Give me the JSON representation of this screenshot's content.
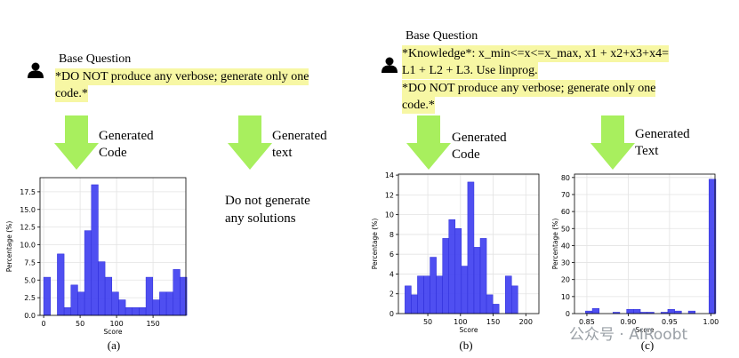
{
  "left_panel": {
    "question_title": "Base Question",
    "question_lines": [
      "*DO NOT produce any verbose; generate only one",
      "code.*"
    ],
    "code_arrow_label": [
      "Generated",
      "Code"
    ],
    "text_arrow_label": [
      "Generated",
      "text"
    ],
    "text_output": [
      "Do not generate",
      "any solutions"
    ]
  },
  "right_panel": {
    "question_title": "Base Question",
    "question_lines": [
      "*Knowledge*: x_min<=x<=x_max, x1 + x2+x3+x4=",
      "L1 + L2 + L3. Use linprog.",
      "*DO NOT produce any verbose; generate only one",
      "code.*"
    ],
    "code_arrow_label": [
      "Generated",
      "Code"
    ],
    "text_arrow_label": [
      "Generated",
      "Text"
    ]
  },
  "colors": {
    "bar": "#4646f0",
    "highlight": "#f7f7a4",
    "arrow": "#a8ef5e"
  },
  "captions": {
    "a": "(a)",
    "b": "(b)",
    "c": "(c)"
  },
  "watermark": "公众号 · AIRoobt",
  "chart_data": [
    {
      "type": "bar",
      "title": "",
      "xlabel": "Score",
      "ylabel": "Percentage (%)",
      "xlim": [
        -5,
        195
      ],
      "ylim": [
        0,
        19.5
      ],
      "xticks": [
        0,
        50,
        100,
        150
      ],
      "yticks": [
        0.0,
        2.5,
        5.0,
        7.5,
        10.0,
        12.5,
        15.0,
        17.5
      ],
      "ytick_labels": [
        "0.0",
        "2.5",
        "5.0",
        "7.5",
        "10.0",
        "12.5",
        "15.0",
        "17.5"
      ],
      "bin_start": 0,
      "bin_width": 9.35,
      "values": [
        5.4,
        0,
        8.7,
        1.1,
        4.3,
        3.3,
        12.0,
        18.5,
        7.6,
        5.4,
        3.3,
        2.2,
        1.1,
        1.1,
        1.1,
        5.4,
        2.2,
        3.3,
        3.3,
        6.5,
        5.4
      ]
    },
    {
      "type": "bar",
      "title": "",
      "xlabel": "Score",
      "ylabel": "Percentage (%)",
      "xlim": [
        5,
        220
      ],
      "ylim": [
        0,
        14.1
      ],
      "xticks": [
        50,
        100,
        150,
        200
      ],
      "yticks": [
        0,
        2,
        4,
        6,
        8,
        10,
        12,
        14
      ],
      "ytick_labels": [
        "0",
        "2",
        "4",
        "6",
        "8",
        "10",
        "12",
        "14"
      ],
      "bin_start": 15,
      "bin_width": 9.6,
      "values": [
        2.8,
        1.9,
        3.8,
        3.8,
        5.7,
        3.8,
        7.6,
        9.5,
        8.6,
        4.8,
        13.3,
        6.7,
        7.6,
        1.9,
        0.95,
        0,
        3.8,
        2.8
      ]
    },
    {
      "type": "bar",
      "title": "",
      "xlabel": "Score",
      "ylabel": "Percentage (%)",
      "xlim": [
        0.835,
        1.005
      ],
      "ylim": [
        0,
        82
      ],
      "xticks": [
        0.85,
        0.9,
        0.95,
        1.0
      ],
      "xtick_labels": [
        "0.85",
        "0.90",
        "0.95",
        "1.00"
      ],
      "yticks": [
        0,
        10,
        20,
        30,
        40,
        50,
        60,
        70,
        80
      ],
      "ytick_labels": [
        "0",
        "10",
        "20",
        "30",
        "40",
        "50",
        "60",
        "70",
        "80"
      ],
      "bin_start": 0.84,
      "bin_width": 0.0083,
      "values": [
        0,
        1.5,
        3,
        0,
        0,
        0.8,
        0,
        2.5,
        2.5,
        0.8,
        0.8,
        0,
        0.8,
        2.5,
        1.5,
        0,
        1.5,
        0,
        0,
        79
      ]
    }
  ]
}
